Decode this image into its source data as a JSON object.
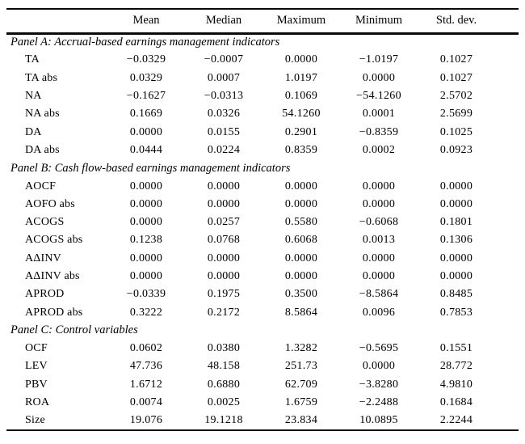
{
  "table": {
    "columns": [
      "",
      "Mean",
      "Median",
      "Maximum",
      "Minimum",
      "Std. dev."
    ],
    "panels": [
      {
        "title": "Panel A: Accrual-based earnings management indicators",
        "rows": [
          {
            "label": "TA",
            "values": [
              "−0.0329",
              "−0.0007",
              "0.0000",
              "−1.0197",
              "0.1027"
            ]
          },
          {
            "label": "TA abs",
            "values": [
              "0.0329",
              "0.0007",
              "1.0197",
              "0.0000",
              "0.1027"
            ]
          },
          {
            "label": "NA",
            "values": [
              "−0.1627",
              "−0.0313",
              "0.1069",
              "−54.1260",
              "2.5702"
            ]
          },
          {
            "label": "NA abs",
            "values": [
              "0.1669",
              "0.0326",
              "54.1260",
              "0.0001",
              "2.5699"
            ]
          },
          {
            "label": "DA",
            "values": [
              "0.0000",
              "0.0155",
              "0.2901",
              "−0.8359",
              "0.1025"
            ]
          },
          {
            "label": "DA abs",
            "values": [
              "0.0444",
              "0.0224",
              "0.8359",
              "0.0002",
              "0.0923"
            ]
          }
        ]
      },
      {
        "title": "Panel B: Cash flow-based earnings management indicators",
        "rows": [
          {
            "label": "AOCF",
            "values": [
              "0.0000",
              "0.0000",
              "0.0000",
              "0.0000",
              "0.0000"
            ]
          },
          {
            "label": "AOFO abs",
            "values": [
              "0.0000",
              "0.0000",
              "0.0000",
              "0.0000",
              "0.0000"
            ]
          },
          {
            "label": "ACOGS",
            "values": [
              "0.0000",
              "0.0257",
              "0.5580",
              "−0.6068",
              "0.1801"
            ]
          },
          {
            "label": "ACOGS abs",
            "values": [
              "0.1238",
              "0.0768",
              "0.6068",
              "0.0013",
              "0.1306"
            ]
          },
          {
            "label": "AΔINV",
            "values": [
              "0.0000",
              "0.0000",
              "0.0000",
              "0.0000",
              "0.0000"
            ]
          },
          {
            "label": "AΔINV abs",
            "values": [
              "0.0000",
              "0.0000",
              "0.0000",
              "0.0000",
              "0.0000"
            ]
          },
          {
            "label": "APROD",
            "values": [
              "−0.0339",
              "0.1975",
              "0.3500",
              "−8.5864",
              "0.8485"
            ]
          },
          {
            "label": "APROD abs",
            "values": [
              "0.3222",
              "0.2172",
              "8.5864",
              "0.0096",
              "0.7853"
            ]
          }
        ]
      },
      {
        "title": "Panel C: Control variables",
        "rows": [
          {
            "label": "OCF",
            "values": [
              "0.0602",
              "0.0380",
              "1.3282",
              "−0.5695",
              "0.1551"
            ]
          },
          {
            "label": "LEV",
            "values": [
              "47.736",
              "48.158",
              "251.73",
              "0.0000",
              "28.772"
            ]
          },
          {
            "label": "PBV",
            "values": [
              "1.6712",
              "0.6880",
              "62.709",
              "−3.8280",
              "4.9810"
            ]
          },
          {
            "label": "ROA",
            "values": [
              "0.0074",
              "0.0025",
              "1.6759",
              "−2.2488",
              "0.1684"
            ]
          },
          {
            "label": "Size",
            "values": [
              "19.076",
              "19.1218",
              "23.834",
              "10.0895",
              "2.2244"
            ]
          }
        ]
      }
    ]
  }
}
